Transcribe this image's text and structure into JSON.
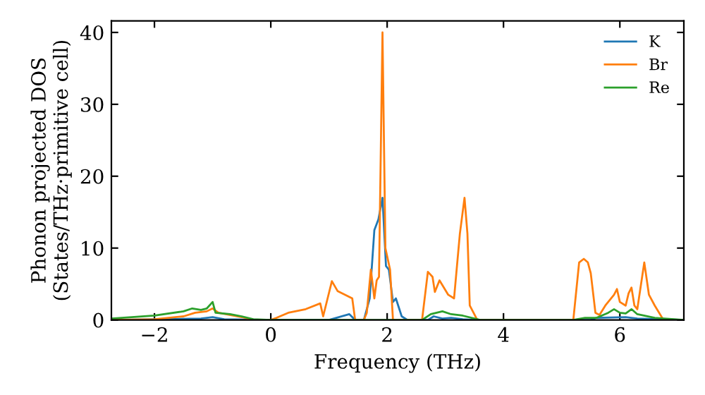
{
  "chart_data": {
    "type": "line",
    "xlabel": "Frequency (THz)",
    "ylabel": "Phonon projected DOS\n(States/THz·primitive cell)",
    "xlim": [
      -2.74,
      7.1
    ],
    "ylim": [
      0,
      41.6
    ],
    "xticks": [
      {
        "value": -2,
        "label": "−2"
      },
      0,
      2,
      4,
      6
    ],
    "yticks": [
      0,
      10,
      20,
      30,
      40
    ],
    "legend": "top right",
    "grid": false,
    "marker": "none",
    "line_style": "solid",
    "series": [
      {
        "name": "K",
        "color": "#1f77b4",
        "x": [
          -2.74,
          -1.2,
          -1.0,
          -0.8,
          0,
          1.0,
          1.35,
          1.45,
          1.6,
          1.7,
          1.78,
          1.85,
          1.92,
          1.98,
          2.03,
          2.1,
          2.15,
          2.25,
          2.35,
          2.7,
          2.8,
          2.95,
          3.1,
          3.3,
          3.5,
          5.5,
          5.6,
          6.1,
          6.3,
          7.1
        ],
        "values": [
          0,
          0.2,
          0.4,
          0.1,
          0,
          0,
          0.8,
          0,
          0,
          3,
          12.5,
          14,
          17,
          7.5,
          7,
          2.5,
          3,
          0.5,
          0,
          0,
          0.5,
          0.2,
          0.3,
          0.1,
          0,
          0,
          0.3,
          0.4,
          0.2,
          0
        ]
      },
      {
        "name": "Br",
        "color": "#ff7f0e",
        "x": [
          -2.74,
          -2,
          -1.5,
          -1.3,
          -1.1,
          -1.0,
          -0.9,
          -0.5,
          -0.3,
          0,
          0.1,
          0.3,
          0.6,
          0.85,
          0.9,
          1.05,
          1.15,
          1.4,
          1.45,
          1.6,
          1.65,
          1.72,
          1.78,
          1.82,
          1.86,
          1.92,
          1.97,
          2.05,
          2.1,
          2.6,
          2.7,
          2.78,
          2.82,
          2.9,
          3.05,
          3.15,
          3.25,
          3.33,
          3.38,
          3.42,
          3.55,
          5.2,
          5.3,
          5.38,
          5.45,
          5.5,
          5.58,
          5.65,
          5.75,
          5.9,
          5.95,
          6.0,
          6.1,
          6.15,
          6.2,
          6.25,
          6.3,
          6.42,
          6.5,
          6.6,
          6.75,
          7.1
        ],
        "values": [
          0,
          0.1,
          0.5,
          1.0,
          1.2,
          1.6,
          1.0,
          0.4,
          0,
          0,
          0.3,
          1.0,
          1.5,
          2.3,
          0.5,
          5.4,
          4,
          3,
          0,
          0,
          1,
          7,
          3,
          5.5,
          6,
          40,
          10,
          7,
          0,
          0,
          6.7,
          6,
          3.9,
          5.5,
          3.5,
          3,
          12,
          17,
          12,
          2,
          0,
          0,
          8,
          8.5,
          8,
          6.5,
          1,
          0.7,
          2,
          3.5,
          4.3,
          2.5,
          2,
          3.7,
          4.5,
          2,
          1.5,
          8,
          3.5,
          2,
          0,
          0
        ]
      },
      {
        "name": "Re",
        "color": "#2ca02c",
        "x": [
          -2.74,
          -2,
          -1.5,
          -1.35,
          -1.2,
          -1.1,
          -1.0,
          -0.95,
          -0.7,
          -0.5,
          -0.3,
          0,
          2.6,
          2.75,
          2.85,
          2.95,
          3.1,
          3.3,
          3.5,
          3.6,
          5.2,
          5.4,
          5.6,
          5.8,
          5.9,
          6.0,
          6.1,
          6.2,
          6.3,
          6.6,
          7.1
        ],
        "values": [
          0.2,
          0.6,
          1.2,
          1.6,
          1.4,
          1.6,
          2.5,
          1.0,
          0.8,
          0.5,
          0.1,
          0,
          0,
          0.8,
          1.0,
          1.2,
          0.8,
          0.6,
          0.2,
          0,
          0,
          0.3,
          0.3,
          1.0,
          1.5,
          1.0,
          0.9,
          1.5,
          0.8,
          0.3,
          0
        ]
      }
    ]
  }
}
